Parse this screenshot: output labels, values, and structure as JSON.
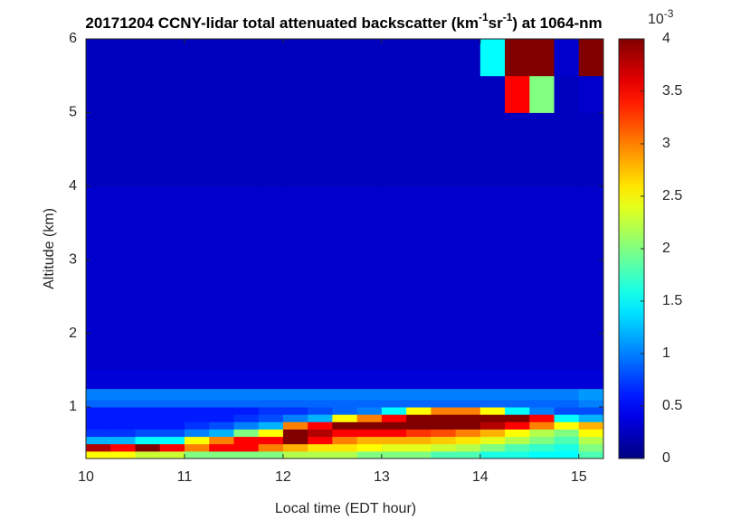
{
  "chart_data": {
    "type": "heatmap",
    "title_parts": [
      "20171204 CCNY-lidar total attenuated backscatter (km",
      "-1",
      "sr",
      "-1",
      ") at 1064-nm"
    ],
    "x_label": "Local time (EDT hour)",
    "y_label": "Altitude (km)",
    "colorbar_exponent": [
      "10",
      "-3"
    ],
    "colormap": "jet",
    "xlim": [
      10,
      15.25
    ],
    "ylim": [
      0.3,
      6
    ],
    "xticks": [
      10,
      11,
      12,
      13,
      14,
      15
    ],
    "yticks": [
      1,
      2,
      3,
      4,
      5,
      6
    ],
    "clim": [
      0,
      4
    ],
    "cticks": [
      0,
      0.5,
      1,
      1.5,
      2,
      2.5,
      3,
      3.5,
      4
    ],
    "xbins": [
      10,
      10.25,
      10.5,
      10.75,
      11,
      11.25,
      11.5,
      11.75,
      12,
      12.25,
      12.5,
      12.75,
      13,
      13.25,
      13.5,
      13.75,
      14,
      14.25,
      14.5,
      14.75,
      15,
      15.25
    ],
    "ybins": [
      0.3,
      0.4,
      0.5,
      0.6,
      0.7,
      0.8,
      0.9,
      1.0,
      1.1,
      1.25,
      1.5,
      2,
      3,
      4,
      5,
      5.5,
      6
    ],
    "z": [
      [
        2.5,
        2.5,
        2.3,
        2.3,
        2.0,
        2.0,
        2.0,
        2.0,
        2.2,
        2.2,
        2.2,
        2.0,
        2.0,
        2.0,
        1.8,
        1.8,
        1.6,
        1.6,
        1.5,
        1.5,
        1.8
      ],
      [
        3.8,
        3.5,
        4,
        3.5,
        3.0,
        3.5,
        3.5,
        3,
        2.8,
        2.6,
        2.6,
        2.5,
        2.4,
        2.4,
        2.3,
        2.2,
        2.0,
        1.8,
        1.7,
        1.6,
        2.0
      ],
      [
        1.2,
        1.2,
        1.5,
        1.5,
        2.5,
        3,
        3.5,
        3.5,
        4,
        3.5,
        3,
        2.8,
        2.8,
        2.8,
        2.7,
        2.6,
        2.4,
        2.2,
        2.0,
        1.8,
        2.2
      ],
      [
        0.7,
        0.7,
        0.8,
        0.8,
        1.0,
        1.2,
        2,
        2.5,
        4,
        3.8,
        3.5,
        3.5,
        3.5,
        3.3,
        3.2,
        3.0,
        2.8,
        2.5,
        2.2,
        2.0,
        2.5
      ],
      [
        0.6,
        0.6,
        0.6,
        0.6,
        0.7,
        0.8,
        1.0,
        1.2,
        3,
        3.5,
        4,
        4,
        4,
        4,
        4,
        4,
        3.8,
        3.5,
        3,
        2.5,
        2.8
      ],
      [
        0.6,
        0.6,
        0.6,
        0.6,
        0.6,
        0.6,
        0.7,
        0.8,
        1.0,
        1.2,
        2.5,
        3,
        3.5,
        4,
        4,
        4,
        4,
        4,
        3.5,
        1.5,
        1.2
      ],
      [
        0.6,
        0.6,
        0.6,
        0.6,
        0.6,
        0.6,
        0.6,
        0.7,
        0.7,
        0.8,
        0.9,
        1.0,
        1.5,
        2.5,
        3,
        3,
        2.5,
        1.5,
        1.0,
        0.8,
        0.8
      ],
      [
        0.9,
        0.9,
        0.9,
        0.9,
        0.9,
        0.9,
        0.9,
        0.9,
        0.9,
        0.9,
        0.9,
        0.9,
        0.9,
        0.9,
        0.9,
        0.9,
        0.9,
        0.9,
        0.9,
        0.9,
        1.0
      ],
      [
        1.0,
        1.0,
        1.0,
        1.0,
        1.0,
        1.0,
        1.0,
        1.0,
        1.0,
        1.0,
        1.0,
        1.0,
        1.0,
        1.0,
        1.0,
        1.0,
        1.0,
        1.0,
        1.0,
        1.0,
        1.1
      ],
      [
        0.35,
        0.35,
        0.35,
        0.35,
        0.35,
        0.35,
        0.35,
        0.35,
        0.35,
        0.35,
        0.35,
        0.35,
        0.35,
        0.35,
        0.35,
        0.35,
        0.35,
        0.35,
        0.35,
        0.35,
        0.35
      ],
      [
        0.3,
        0.3,
        0.3,
        0.3,
        0.3,
        0.3,
        0.3,
        0.3,
        0.3,
        0.3,
        0.3,
        0.3,
        0.3,
        0.3,
        0.3,
        0.3,
        0.3,
        0.3,
        0.3,
        0.3,
        0.3
      ],
      [
        0.3,
        0.3,
        0.3,
        0.3,
        0.3,
        0.3,
        0.3,
        0.3,
        0.3,
        0.3,
        0.3,
        0.3,
        0.3,
        0.3,
        0.3,
        0.3,
        0.3,
        0.3,
        0.3,
        0.3,
        0.3
      ],
      [
        0.3,
        0.3,
        0.3,
        0.3,
        0.3,
        0.3,
        0.3,
        0.3,
        0.3,
        0.3,
        0.3,
        0.3,
        0.3,
        0.3,
        0.3,
        0.3,
        0.3,
        0.3,
        0.3,
        0.3,
        0.3
      ],
      [
        0.25,
        0.25,
        0.25,
        0.25,
        0.25,
        0.25,
        0.25,
        0.25,
        0.25,
        0.25,
        0.25,
        0.25,
        0.25,
        0.25,
        0.25,
        0.25,
        0.25,
        0.25,
        0.25,
        0.25,
        0.25
      ],
      [
        0.25,
        0.25,
        0.25,
        0.25,
        0.25,
        0.25,
        0.25,
        0.25,
        0.25,
        0.25,
        0.25,
        0.25,
        0.25,
        0.25,
        0.25,
        0.25,
        0.25,
        3.5,
        2.0,
        0.25,
        0.3
      ],
      [
        0.25,
        0.25,
        0.25,
        0.25,
        0.25,
        0.25,
        0.25,
        0.25,
        0.25,
        0.25,
        0.25,
        0.25,
        0.25,
        0.25,
        0.25,
        0.25,
        1.5,
        4,
        4,
        0.3,
        4
      ]
    ]
  }
}
